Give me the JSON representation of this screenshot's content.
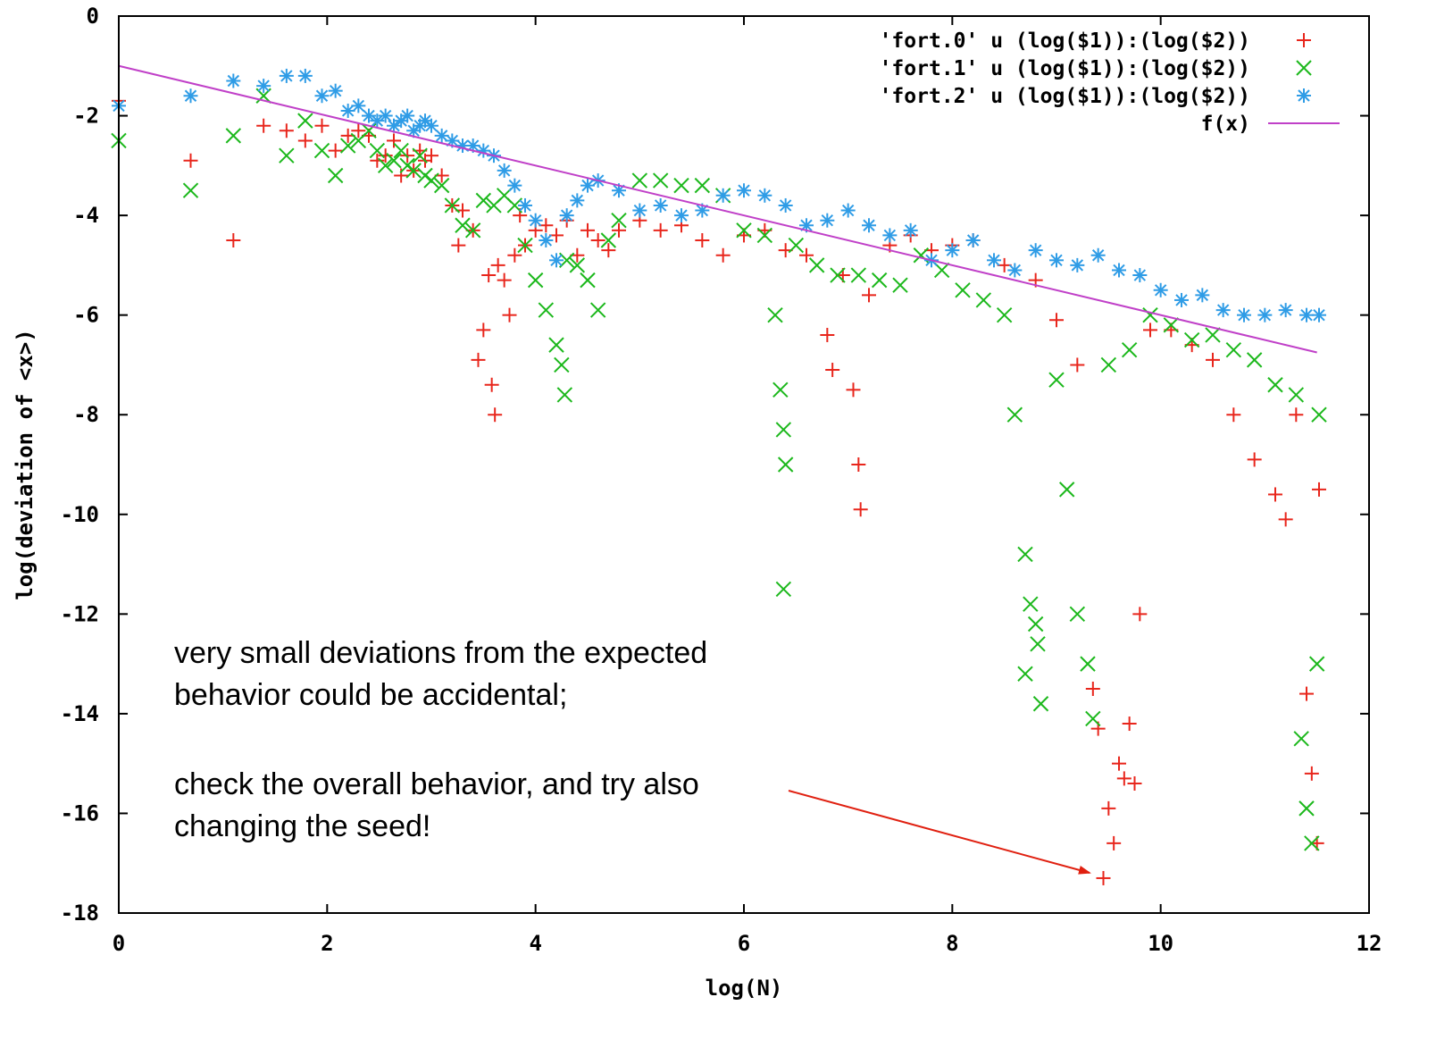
{
  "chart_data": {
    "type": "scatter",
    "title": "",
    "xlabel": "log(N)",
    "ylabel": "log(deviation of <x>)",
    "xlim": [
      0,
      12
    ],
    "ylim": [
      -18,
      0
    ],
    "xticks": [
      "0",
      "2",
      "4",
      "6",
      "8",
      "10",
      "12"
    ],
    "yticks": [
      "0",
      "-2",
      "-4",
      "-6",
      "-8",
      "-10",
      "-12",
      "-14",
      "-16",
      "-18"
    ],
    "grid": false,
    "legend_position": "top-right",
    "series": [
      {
        "name": "'fort.0' u (log($1)):(log($2))",
        "marker": "plus",
        "color": "#e8261c",
        "points": [
          [
            0.0,
            -1.7
          ],
          [
            0.69,
            -2.9
          ],
          [
            1.1,
            -4.5
          ],
          [
            1.39,
            -2.2
          ],
          [
            1.61,
            -2.3
          ],
          [
            1.79,
            -2.5
          ],
          [
            1.95,
            -2.2
          ],
          [
            2.08,
            -2.7
          ],
          [
            2.2,
            -2.4
          ],
          [
            2.3,
            -2.3
          ],
          [
            2.4,
            -2.4
          ],
          [
            2.48,
            -2.9
          ],
          [
            2.56,
            -2.8
          ],
          [
            2.64,
            -2.5
          ],
          [
            2.71,
            -3.2
          ],
          [
            2.77,
            -2.8
          ],
          [
            2.83,
            -3.1
          ],
          [
            2.89,
            -2.7
          ],
          [
            2.94,
            -2.9
          ],
          [
            3.0,
            -2.8
          ],
          [
            3.1,
            -3.2
          ],
          [
            3.2,
            -3.8
          ],
          [
            3.26,
            -4.6
          ],
          [
            3.3,
            -3.9
          ],
          [
            3.4,
            -4.3
          ],
          [
            3.45,
            -6.9
          ],
          [
            3.5,
            -6.3
          ],
          [
            3.55,
            -5.2
          ],
          [
            3.58,
            -7.4
          ],
          [
            3.61,
            -8.0
          ],
          [
            3.64,
            -5.0
          ],
          [
            3.7,
            -5.3
          ],
          [
            3.75,
            -6.0
          ],
          [
            3.8,
            -4.8
          ],
          [
            3.85,
            -4.0
          ],
          [
            3.9,
            -4.6
          ],
          [
            4.0,
            -4.3
          ],
          [
            4.1,
            -4.2
          ],
          [
            4.2,
            -4.4
          ],
          [
            4.3,
            -4.1
          ],
          [
            4.4,
            -4.8
          ],
          [
            4.5,
            -4.3
          ],
          [
            4.6,
            -4.5
          ],
          [
            4.7,
            -4.7
          ],
          [
            4.8,
            -4.3
          ],
          [
            5.0,
            -4.1
          ],
          [
            5.2,
            -4.3
          ],
          [
            5.4,
            -4.2
          ],
          [
            5.6,
            -4.5
          ],
          [
            5.8,
            -4.8
          ],
          [
            6.0,
            -4.4
          ],
          [
            6.2,
            -4.3
          ],
          [
            6.4,
            -4.7
          ],
          [
            6.6,
            -4.8
          ],
          [
            6.8,
            -6.4
          ],
          [
            6.85,
            -7.1
          ],
          [
            6.95,
            -5.2
          ],
          [
            7.05,
            -7.5
          ],
          [
            7.1,
            -9.0
          ],
          [
            7.12,
            -9.9
          ],
          [
            7.2,
            -5.6
          ],
          [
            7.4,
            -4.6
          ],
          [
            7.6,
            -4.4
          ],
          [
            7.8,
            -4.7
          ],
          [
            8.0,
            -4.6
          ],
          [
            8.2,
            -4.5
          ],
          [
            8.5,
            -5.0
          ],
          [
            8.8,
            -5.3
          ],
          [
            9.0,
            -6.1
          ],
          [
            9.2,
            -7.0
          ],
          [
            9.35,
            -13.5
          ],
          [
            9.4,
            -14.3
          ],
          [
            9.45,
            -17.3
          ],
          [
            9.5,
            -15.9
          ],
          [
            9.55,
            -16.6
          ],
          [
            9.6,
            -15.0
          ],
          [
            9.65,
            -15.3
          ],
          [
            9.7,
            -14.2
          ],
          [
            9.75,
            -15.4
          ],
          [
            9.8,
            -12.0
          ],
          [
            9.9,
            -6.3
          ],
          [
            10.1,
            -6.3
          ],
          [
            10.3,
            -6.6
          ],
          [
            10.5,
            -6.9
          ],
          [
            10.7,
            -8.0
          ],
          [
            10.9,
            -8.9
          ],
          [
            11.1,
            -9.6
          ],
          [
            11.2,
            -10.1
          ],
          [
            11.3,
            -8.0
          ],
          [
            11.4,
            -13.6
          ],
          [
            11.45,
            -15.2
          ],
          [
            11.5,
            -16.6
          ],
          [
            11.52,
            -9.5
          ]
        ]
      },
      {
        "name": "'fort.1' u (log($1)):(log($2))",
        "marker": "cross",
        "color": "#1cb81c",
        "points": [
          [
            0.0,
            -2.5
          ],
          [
            0.69,
            -3.5
          ],
          [
            1.1,
            -2.4
          ],
          [
            1.39,
            -1.6
          ],
          [
            1.61,
            -2.8
          ],
          [
            1.79,
            -2.1
          ],
          [
            1.95,
            -2.7
          ],
          [
            2.08,
            -3.2
          ],
          [
            2.2,
            -2.6
          ],
          [
            2.3,
            -2.5
          ],
          [
            2.4,
            -2.3
          ],
          [
            2.48,
            -2.7
          ],
          [
            2.56,
            -3.0
          ],
          [
            2.64,
            -2.9
          ],
          [
            2.71,
            -2.7
          ],
          [
            2.77,
            -3.0
          ],
          [
            2.83,
            -3.1
          ],
          [
            2.89,
            -2.8
          ],
          [
            2.94,
            -3.2
          ],
          [
            3.0,
            -3.3
          ],
          [
            3.1,
            -3.4
          ],
          [
            3.2,
            -3.8
          ],
          [
            3.3,
            -4.2
          ],
          [
            3.4,
            -4.3
          ],
          [
            3.5,
            -3.7
          ],
          [
            3.6,
            -3.8
          ],
          [
            3.7,
            -3.6
          ],
          [
            3.8,
            -3.8
          ],
          [
            3.9,
            -4.6
          ],
          [
            4.0,
            -5.3
          ],
          [
            4.1,
            -5.9
          ],
          [
            4.2,
            -6.6
          ],
          [
            4.25,
            -7.0
          ],
          [
            4.28,
            -7.6
          ],
          [
            4.3,
            -4.9
          ],
          [
            4.4,
            -5.0
          ],
          [
            4.5,
            -5.3
          ],
          [
            4.6,
            -5.9
          ],
          [
            4.7,
            -4.5
          ],
          [
            4.8,
            -4.1
          ],
          [
            5.0,
            -3.3
          ],
          [
            5.2,
            -3.3
          ],
          [
            5.4,
            -3.4
          ],
          [
            5.6,
            -3.4
          ],
          [
            5.8,
            -3.6
          ],
          [
            6.0,
            -4.3
          ],
          [
            6.2,
            -4.4
          ],
          [
            6.3,
            -6.0
          ],
          [
            6.35,
            -7.5
          ],
          [
            6.38,
            -8.3
          ],
          [
            6.4,
            -9.0
          ],
          [
            6.38,
            -11.5
          ],
          [
            6.5,
            -4.6
          ],
          [
            6.7,
            -5.0
          ],
          [
            6.9,
            -5.2
          ],
          [
            7.1,
            -5.2
          ],
          [
            7.3,
            -5.3
          ],
          [
            7.5,
            -5.4
          ],
          [
            7.7,
            -4.8
          ],
          [
            7.9,
            -5.1
          ],
          [
            8.1,
            -5.5
          ],
          [
            8.3,
            -5.7
          ],
          [
            8.5,
            -6.0
          ],
          [
            8.6,
            -8.0
          ],
          [
            8.7,
            -10.8
          ],
          [
            8.75,
            -11.8
          ],
          [
            8.8,
            -12.2
          ],
          [
            8.82,
            -12.6
          ],
          [
            8.85,
            -13.8
          ],
          [
            8.7,
            -13.2
          ],
          [
            9.0,
            -7.3
          ],
          [
            9.1,
            -9.5
          ],
          [
            9.2,
            -12.0
          ],
          [
            9.3,
            -13.0
          ],
          [
            9.35,
            -14.1
          ],
          [
            9.5,
            -7.0
          ],
          [
            9.7,
            -6.7
          ],
          [
            9.9,
            -6.0
          ],
          [
            10.1,
            -6.2
          ],
          [
            10.3,
            -6.5
          ],
          [
            10.5,
            -6.4
          ],
          [
            10.7,
            -6.7
          ],
          [
            10.9,
            -6.9
          ],
          [
            11.1,
            -7.4
          ],
          [
            11.3,
            -7.6
          ],
          [
            11.35,
            -14.5
          ],
          [
            11.4,
            -15.9
          ],
          [
            11.45,
            -16.6
          ],
          [
            11.5,
            -13.0
          ],
          [
            11.52,
            -8.0
          ]
        ]
      },
      {
        "name": "'fort.2' u (log($1)):(log($2))",
        "marker": "star",
        "color": "#2f9ce6",
        "points": [
          [
            0.0,
            -1.8
          ],
          [
            0.69,
            -1.6
          ],
          [
            1.1,
            -1.3
          ],
          [
            1.39,
            -1.4
          ],
          [
            1.61,
            -1.2
          ],
          [
            1.79,
            -1.2
          ],
          [
            1.95,
            -1.6
          ],
          [
            2.08,
            -1.5
          ],
          [
            2.2,
            -1.9
          ],
          [
            2.3,
            -1.8
          ],
          [
            2.4,
            -2.0
          ],
          [
            2.48,
            -2.1
          ],
          [
            2.56,
            -2.0
          ],
          [
            2.64,
            -2.2
          ],
          [
            2.71,
            -2.1
          ],
          [
            2.77,
            -2.0
          ],
          [
            2.83,
            -2.3
          ],
          [
            2.89,
            -2.2
          ],
          [
            2.94,
            -2.1
          ],
          [
            3.0,
            -2.2
          ],
          [
            3.1,
            -2.4
          ],
          [
            3.2,
            -2.5
          ],
          [
            3.3,
            -2.6
          ],
          [
            3.4,
            -2.6
          ],
          [
            3.5,
            -2.7
          ],
          [
            3.6,
            -2.8
          ],
          [
            3.7,
            -3.1
          ],
          [
            3.8,
            -3.4
          ],
          [
            3.9,
            -3.8
          ],
          [
            4.0,
            -4.1
          ],
          [
            4.1,
            -4.5
          ],
          [
            4.2,
            -4.9
          ],
          [
            4.3,
            -4.0
          ],
          [
            4.4,
            -3.7
          ],
          [
            4.5,
            -3.4
          ],
          [
            4.6,
            -3.3
          ],
          [
            4.8,
            -3.5
          ],
          [
            5.0,
            -3.9
          ],
          [
            5.2,
            -3.8
          ],
          [
            5.4,
            -4.0
          ],
          [
            5.6,
            -3.9
          ],
          [
            5.8,
            -3.6
          ],
          [
            6.0,
            -3.5
          ],
          [
            6.2,
            -3.6
          ],
          [
            6.4,
            -3.8
          ],
          [
            6.6,
            -4.2
          ],
          [
            6.8,
            -4.1
          ],
          [
            7.0,
            -3.9
          ],
          [
            7.2,
            -4.2
          ],
          [
            7.4,
            -4.4
          ],
          [
            7.6,
            -4.3
          ],
          [
            7.8,
            -4.9
          ],
          [
            8.0,
            -4.7
          ],
          [
            8.2,
            -4.5
          ],
          [
            8.4,
            -4.9
          ],
          [
            8.6,
            -5.1
          ],
          [
            8.8,
            -4.7
          ],
          [
            9.0,
            -4.9
          ],
          [
            9.2,
            -5.0
          ],
          [
            9.4,
            -4.8
          ],
          [
            9.6,
            -5.1
          ],
          [
            9.8,
            -5.2
          ],
          [
            10.0,
            -5.5
          ],
          [
            10.2,
            -5.7
          ],
          [
            10.4,
            -5.6
          ],
          [
            10.6,
            -5.9
          ],
          [
            10.8,
            -6.0
          ],
          [
            11.0,
            -6.0
          ],
          [
            11.2,
            -5.9
          ],
          [
            11.4,
            -6.0
          ],
          [
            11.52,
            -6.0
          ]
        ]
      },
      {
        "name": "f(x)",
        "marker": "line",
        "color": "#c040c8",
        "points": [
          [
            0,
            -1.0
          ],
          [
            11.5,
            -6.75
          ]
        ]
      }
    ],
    "annotations": [
      {
        "lines": [
          "very small deviations from the expected",
          "behavior could be accidental;"
        ]
      },
      {
        "lines": [
          "check the overall behavior, and try also",
          "changing the seed!"
        ]
      }
    ]
  }
}
